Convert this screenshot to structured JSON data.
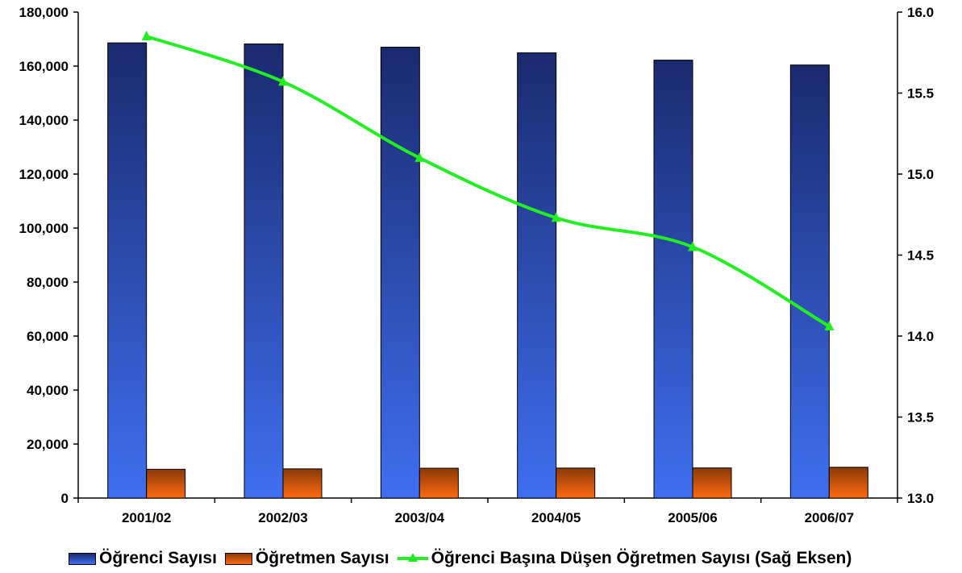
{
  "chart_data": {
    "type": "bar",
    "categories": [
      "2001/02",
      "2002/03",
      "2003/04",
      "2004/05",
      "2005/06",
      "2006/07"
    ],
    "series": [
      {
        "name": "Öğrenci Sayısı",
        "type": "bar",
        "axis": "left",
        "color_top": "#1a2a6e",
        "color_bottom": "#3f6ff0",
        "values": [
          168600,
          168200,
          167000,
          164900,
          162200,
          160400
        ]
      },
      {
        "name": "Öğretmen Sayısı",
        "type": "bar",
        "axis": "left",
        "color_top": "#8a3a08",
        "color_bottom": "#ff6a10",
        "values": [
          10650,
          10800,
          11050,
          11100,
          11150,
          11400
        ]
      },
      {
        "name": "Öğrenci Başına Düşen Öğretmen Sayısı (Sağ Eksen)",
        "type": "line",
        "axis": "right",
        "color": "#22ee22",
        "values": [
          15.85,
          15.57,
          15.1,
          14.73,
          14.55,
          14.06
        ]
      }
    ],
    "y_left": {
      "min": 0,
      "max": 180000,
      "ticks": [
        0,
        20000,
        40000,
        60000,
        80000,
        100000,
        120000,
        140000,
        160000,
        180000
      ],
      "tick_labels": [
        "0",
        "20,000",
        "40,000",
        "60,000",
        "80,000",
        "100,000",
        "120,000",
        "140,000",
        "160,000",
        "180,000"
      ]
    },
    "y_right": {
      "min": 13.0,
      "max": 16.0,
      "ticks": [
        13.0,
        13.5,
        14.0,
        14.5,
        15.0,
        15.5,
        16.0
      ],
      "tick_labels": [
        "13.0",
        "13.5",
        "14.0",
        "14.5",
        "15.0",
        "15.5",
        "16.0"
      ]
    },
    "grid": false,
    "legend_position": "bottom"
  }
}
